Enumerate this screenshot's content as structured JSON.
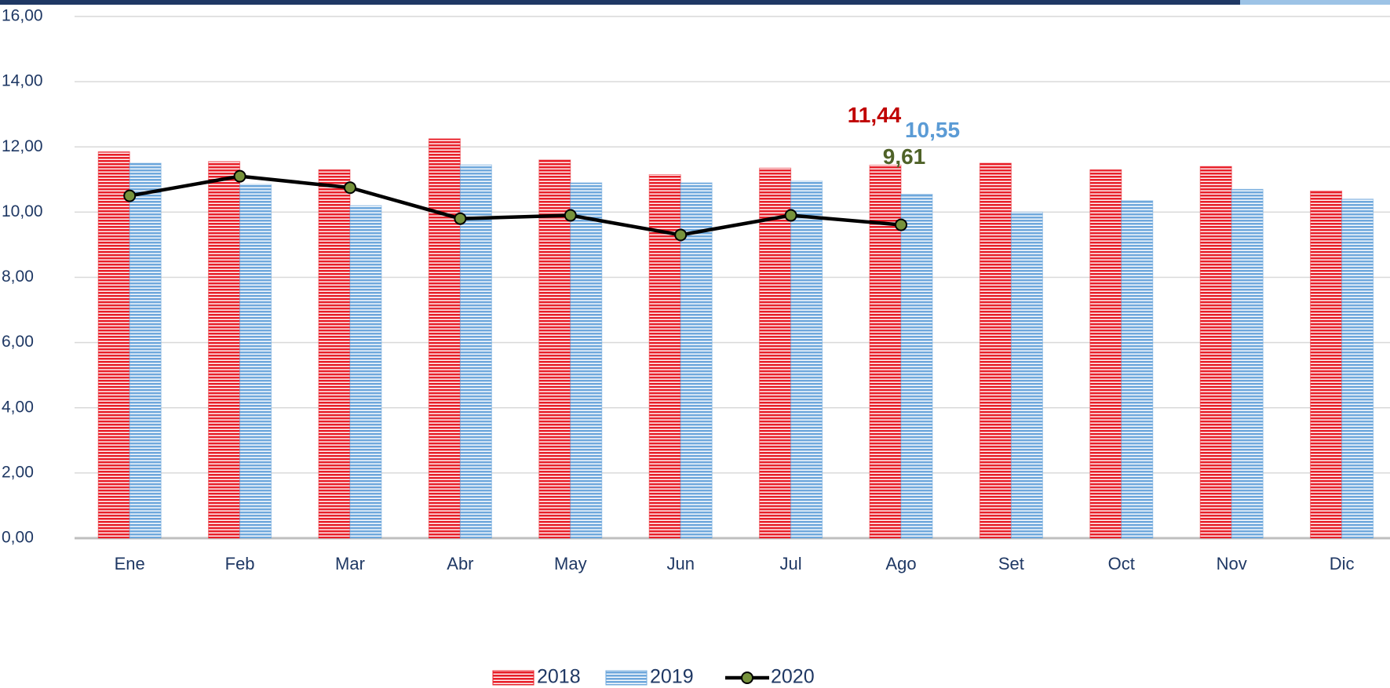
{
  "chart_data": {
    "type": "bar_line",
    "categories": [
      "Ene",
      "Feb",
      "Mar",
      "Abr",
      "May",
      "Jun",
      "Jul",
      "Ago",
      "Set",
      "Oct",
      "Nov",
      "Dic"
    ],
    "series": [
      {
        "name": "2018",
        "type": "bar",
        "color": "#e8202a",
        "label_color": "#c00000",
        "values": [
          11.85,
          11.55,
          11.3,
          12.25,
          11.6,
          11.15,
          11.35,
          11.44,
          11.5,
          11.3,
          11.4,
          10.65
        ],
        "value_labels": [
          null,
          null,
          null,
          null,
          null,
          null,
          null,
          "11,44",
          null,
          null,
          null,
          null
        ]
      },
      {
        "name": "2019",
        "type": "bar",
        "color": "#6fa8dc",
        "label_color": "#5b9bd5",
        "values": [
          11.5,
          10.85,
          10.2,
          11.45,
          10.9,
          10.9,
          10.95,
          10.55,
          10.0,
          10.35,
          10.7,
          10.4
        ],
        "value_labels": [
          null,
          null,
          null,
          null,
          null,
          null,
          null,
          "10,55",
          null,
          null,
          null,
          null
        ]
      },
      {
        "name": "2020",
        "type": "line",
        "color": "#000000",
        "marker_color": "#77933c",
        "label_color": "#4f6228",
        "values": [
          10.5,
          11.1,
          10.75,
          9.8,
          9.9,
          9.3,
          9.9,
          9.61,
          null,
          null,
          null,
          null
        ],
        "value_labels": [
          null,
          null,
          null,
          null,
          null,
          null,
          null,
          "9,61",
          null,
          null,
          null,
          null
        ]
      }
    ],
    "ylim": [
      0,
      16
    ],
    "yticks": [
      {
        "value": 0,
        "label": "0,00"
      },
      {
        "value": 2,
        "label": "2,00"
      },
      {
        "value": 4,
        "label": "4,00"
      },
      {
        "value": 6,
        "label": "6,00"
      },
      {
        "value": 8,
        "label": "8,00"
      },
      {
        "value": 10,
        "label": "10,00"
      },
      {
        "value": 12,
        "label": "12,00"
      },
      {
        "value": 14,
        "label": "14,00"
      },
      {
        "value": 16,
        "label": "16,00"
      }
    ],
    "grid": true,
    "legend": "bottom"
  }
}
